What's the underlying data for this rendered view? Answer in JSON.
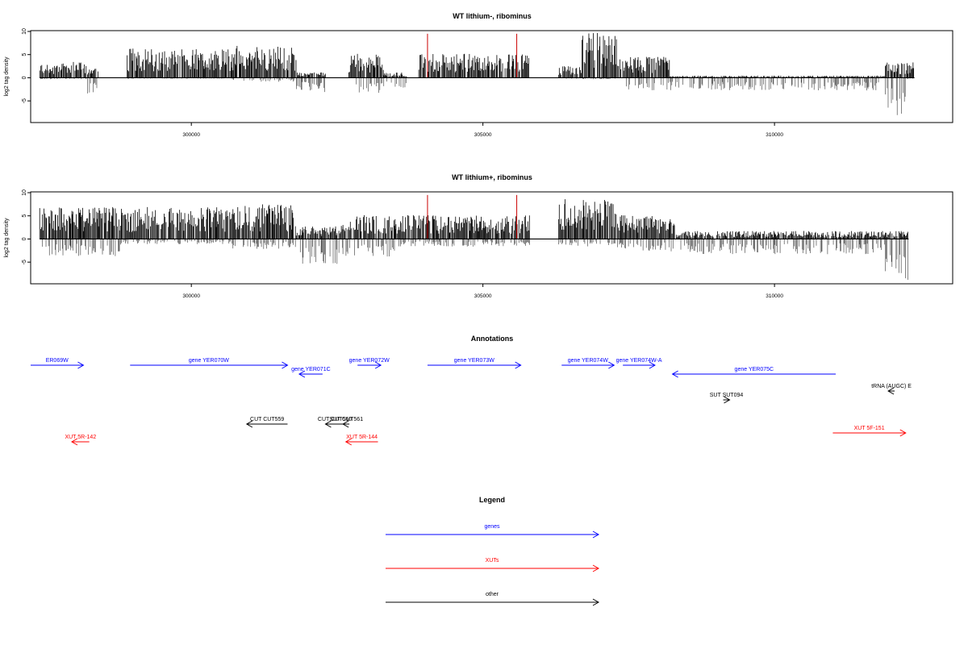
{
  "colors": {
    "gene": "#0000ff",
    "xut": "#ff0000",
    "other": "#000000",
    "highlight": "#cc0000",
    "bar": "#000000"
  },
  "chart_data": [
    {
      "type": "bar",
      "title": "WT lithium-, ribominus",
      "ylabel": "log2 tag density",
      "xlim": [
        297300,
        313000
      ],
      "ylim": [
        -9.5,
        10
      ],
      "yticks": [
        10,
        5,
        0,
        -5
      ],
      "xticks": [
        300000,
        305000,
        310000
      ],
      "xtick_labels": [
        "300000",
        "305000",
        "310000"
      ],
      "highlight_positions": [
        304050,
        305580
      ],
      "highlight_height": 9.5,
      "segments": [
        {
          "start": 297400,
          "end": 298200,
          "pos": 3.0,
          "neg": 0.3
        },
        {
          "start": 298200,
          "end": 298400,
          "pos": 2.0,
          "neg": 3.3
        },
        {
          "start": 298900,
          "end": 300700,
          "pos": 5.5,
          "neg": 0.2
        },
        {
          "start": 300700,
          "end": 301800,
          "pos": 6.0,
          "neg": 0.8
        },
        {
          "start": 301800,
          "end": 302300,
          "pos": 1.0,
          "neg": 2.8
        },
        {
          "start": 302700,
          "end": 303300,
          "pos": 4.5,
          "neg": 3.0
        },
        {
          "start": 303300,
          "end": 303700,
          "pos": 1.0,
          "neg": 2.0
        },
        {
          "start": 303900,
          "end": 305800,
          "pos": 4.5,
          "neg": 0.1
        },
        {
          "start": 306300,
          "end": 306700,
          "pos": 2.2,
          "neg": 0.2
        },
        {
          "start": 306700,
          "end": 307300,
          "pos": 8.5,
          "neg": 0.3
        },
        {
          "start": 307300,
          "end": 308200,
          "pos": 4.0,
          "neg": 2.5
        },
        {
          "start": 308200,
          "end": 311900,
          "pos": 0.4,
          "neg": 2.5
        },
        {
          "start": 311900,
          "end": 312250,
          "pos": 3.0,
          "neg": 7.5
        },
        {
          "start": 312250,
          "end": 312400,
          "pos": 3.0,
          "neg": 0.3
        }
      ]
    },
    {
      "type": "bar",
      "title": "WT lithium+, ribominus",
      "ylabel": "log2 tag density",
      "xlim": [
        297300,
        313000
      ],
      "ylim": [
        -9.5,
        10
      ],
      "yticks": [
        10,
        5,
        0,
        -5
      ],
      "xticks": [
        300000,
        305000,
        310000
      ],
      "xtick_labels": [
        "300000",
        "305000",
        "310000"
      ],
      "highlight_positions": [
        304050,
        305580
      ],
      "highlight_height": 9.5,
      "segments": [
        {
          "start": 297400,
          "end": 298800,
          "pos": 6.0,
          "neg": 3.5
        },
        {
          "start": 298800,
          "end": 300700,
          "pos": 6.0,
          "neg": 1.0
        },
        {
          "start": 300700,
          "end": 301800,
          "pos": 6.5,
          "neg": 2.0
        },
        {
          "start": 301800,
          "end": 302600,
          "pos": 2.5,
          "neg": 5.0
        },
        {
          "start": 302600,
          "end": 303500,
          "pos": 4.5,
          "neg": 3.5
        },
        {
          "start": 303500,
          "end": 305800,
          "pos": 4.5,
          "neg": 1.5
        },
        {
          "start": 306300,
          "end": 307300,
          "pos": 7.5,
          "neg": 1.5
        },
        {
          "start": 307300,
          "end": 308300,
          "pos": 4.5,
          "neg": 2.5
        },
        {
          "start": 308300,
          "end": 311900,
          "pos": 1.5,
          "neg": 3.0
        },
        {
          "start": 311900,
          "end": 312300,
          "pos": 1.5,
          "neg": 8.5
        }
      ]
    }
  ],
  "annotations": {
    "title": "Annotations",
    "items": [
      {
        "label": "ER069W",
        "strand": "+",
        "type": "gene",
        "start": 297050,
        "end": 298150,
        "row": 0
      },
      {
        "label": "gene YER070W",
        "strand": "+",
        "type": "gene",
        "start": 298950,
        "end": 301650,
        "row": 0
      },
      {
        "label": "gene YER071C",
        "strand": "-",
        "type": "gene",
        "start": 301850,
        "end": 302250,
        "row": 1
      },
      {
        "label": "gene YER072W",
        "strand": "+",
        "type": "gene",
        "start": 302850,
        "end": 303250,
        "row": 0
      },
      {
        "label": "gene YER073W",
        "strand": "+",
        "type": "gene",
        "start": 304050,
        "end": 305650,
        "row": 0
      },
      {
        "label": "gene YER074W",
        "strand": "+",
        "type": "gene",
        "start": 306350,
        "end": 307250,
        "row": 0
      },
      {
        "label": "gene YER074W-A",
        "strand": "+",
        "type": "gene",
        "start": 307400,
        "end": 307950,
        "row": 0
      },
      {
        "label": "gene YER075C",
        "strand": "-",
        "type": "gene",
        "start": 308250,
        "end": 311050,
        "row": 1
      },
      {
        "label": "tRNA (AUGC) E",
        "strand": "-",
        "type": "other",
        "start": 311950,
        "end": 312050,
        "row": 2
      },
      {
        "label": "SUT SUT094",
        "strand": "+",
        "type": "other",
        "start": 309120,
        "end": 309200,
        "row": 3
      },
      {
        "label": "CUT CUT559",
        "strand": "-",
        "type": "other",
        "start": 300950,
        "end": 301650,
        "row": 4
      },
      {
        "label": "CUT CUT560",
        "strand": "-",
        "type": "other",
        "start": 302300,
        "end": 302620,
        "row": 4
      },
      {
        "label": "SUT CUT561",
        "strand": "-",
        "type": "other",
        "start": 302600,
        "end": 302650,
        "row": 4
      },
      {
        "label": "XUT 5R-142",
        "strand": "-",
        "type": "xut",
        "start": 297950,
        "end": 298250,
        "row": 5
      },
      {
        "label": "XUT 5R-144",
        "strand": "-",
        "type": "xut",
        "start": 302650,
        "end": 303200,
        "row": 5
      },
      {
        "label": "XUT 5F-151",
        "strand": "+",
        "type": "xut",
        "start": 311000,
        "end": 312250,
        "row": 6
      }
    ]
  },
  "legend": {
    "title": "Legend",
    "items": [
      {
        "label": "genes",
        "type": "gene"
      },
      {
        "label": "XUTs",
        "type": "xut"
      },
      {
        "label": "other",
        "type": "other"
      }
    ]
  }
}
